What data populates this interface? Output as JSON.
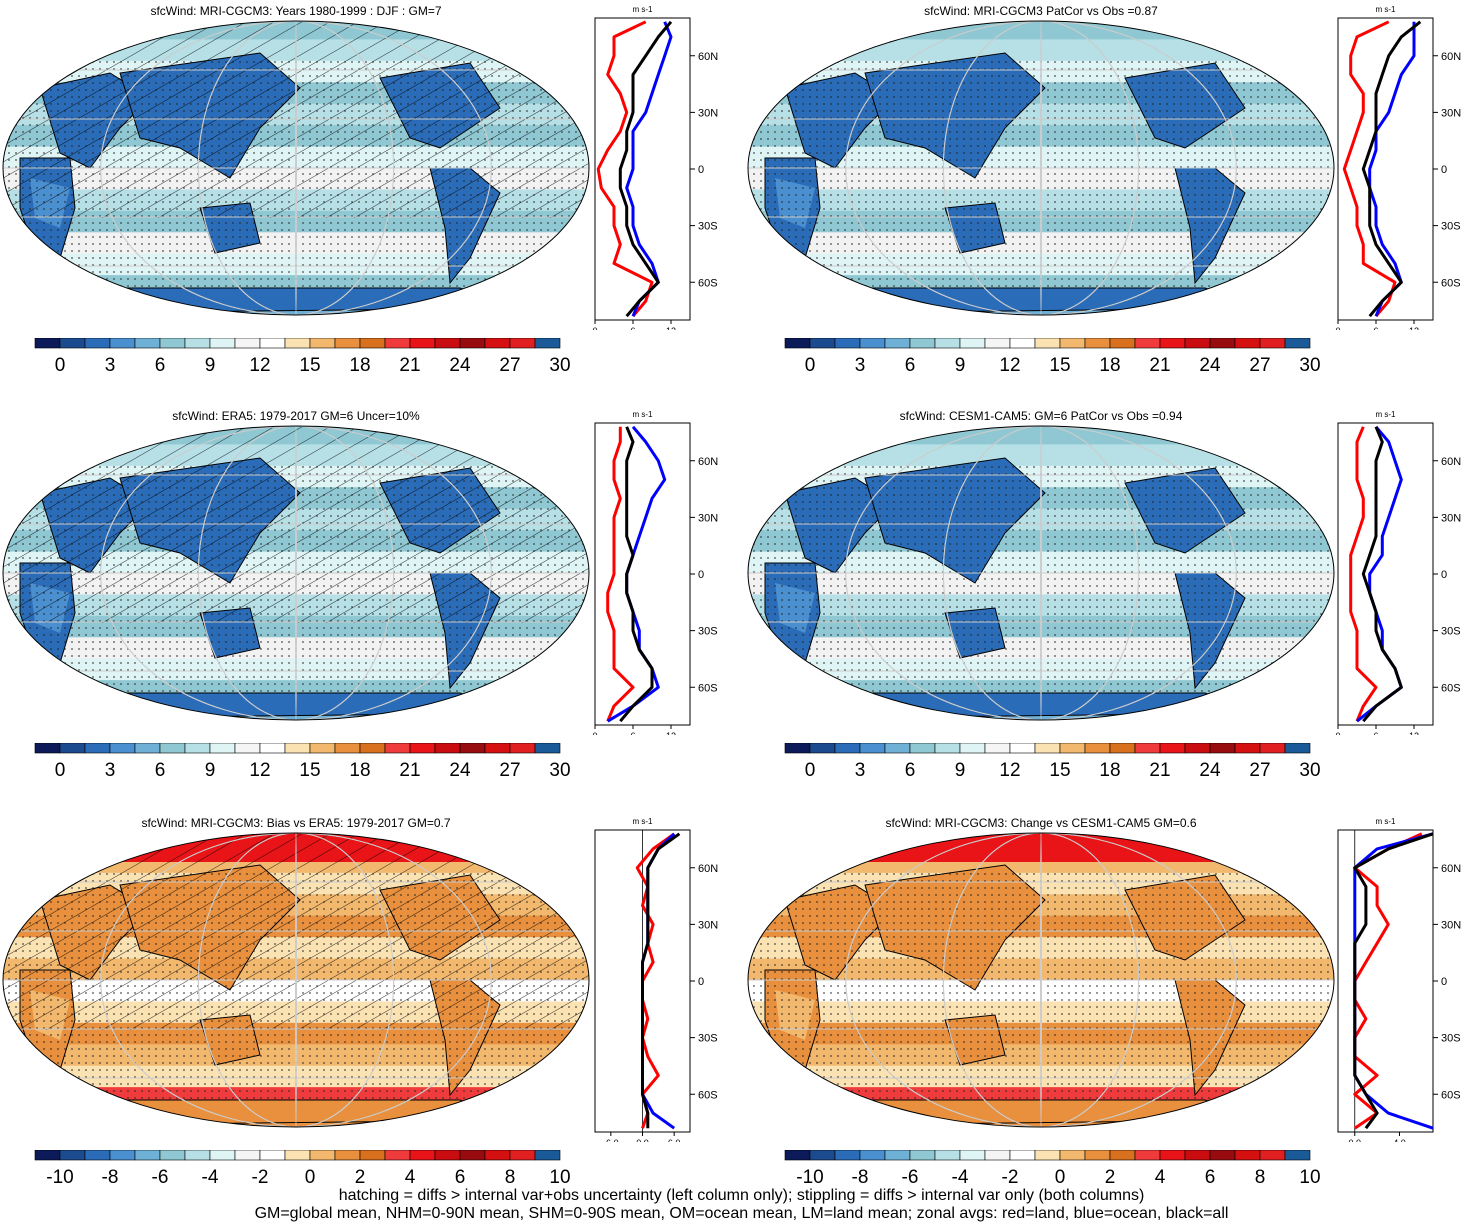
{
  "colors": {
    "blue_scale": [
      "#0c1a5a",
      "#1c4a8e",
      "#2a6cb8",
      "#4a8fd0",
      "#6fb0d6",
      "#8fc8d2",
      "#b6e0e6",
      "#dff5f5",
      "#f5f5f5",
      "#ffffff",
      "#fbe2b2",
      "#f2b86e",
      "#e8903e",
      "#d8701e",
      "#ef3b3b",
      "#e81418",
      "#c80c10",
      "#980c10",
      "#d41010",
      "#e02020",
      "#1a5a98"
    ],
    "diff_scale": [
      "#0c1a5a",
      "#1c4a8e",
      "#2a6cb8",
      "#4a8fd0",
      "#6fb0d6",
      "#8fc8d2",
      "#b6e0e6",
      "#dff5f5",
      "#f5f5f5",
      "#ffffff",
      "#fbe2b2",
      "#f2b86e",
      "#e8903e",
      "#d8701e",
      "#ef3b3b",
      "#e81418",
      "#c80c10",
      "#980c10",
      "#d41010",
      "#e02020",
      "#1a5a98"
    ],
    "land": "#ff0000",
    "ocean": "#0000ff",
    "all": "#000000"
  },
  "colorbar_abs": {
    "labels": [
      "0",
      "3",
      "6",
      "9",
      "12",
      "15",
      "18",
      "21",
      "24",
      "27",
      "30"
    ]
  },
  "colorbar_diff": {
    "labels": [
      "-10",
      "-8",
      "-6",
      "-4",
      "-2",
      "0",
      "2",
      "4",
      "6",
      "8",
      "10"
    ]
  },
  "zonal_common": {
    "unit": "m s-1",
    "lat_ticks": [
      "60N",
      "30N",
      "0",
      "30S",
      "60S"
    ]
  },
  "panels": [
    {
      "title": "sfcWind: MRI-CGCM3: Years 1980-1999 : DJF : GM=7",
      "map_style": "abs",
      "hatched": true,
      "x_ticks": [
        "0",
        "6",
        "12"
      ]
    },
    {
      "title": "sfcWind: MRI-CGCM3 PatCor vs Obs =0.87",
      "map_style": "abs",
      "hatched": false,
      "x_ticks": [
        "0",
        "6",
        "12"
      ]
    },
    {
      "title": "sfcWind: ERA5: 1979-2017 GM=6 Uncer=10%",
      "map_style": "abs",
      "hatched": true,
      "x_ticks": [
        "0",
        "6",
        "12"
      ]
    },
    {
      "title": "sfcWind: CESM1-CAM5: GM=6 PatCor vs Obs =0.94",
      "map_style": "abs",
      "hatched": false,
      "x_ticks": [
        "0",
        "6",
        "12"
      ]
    },
    {
      "title": "sfcWind: MRI-CGCM3: Bias vs ERA5: 1979-2017 GM=0.7",
      "map_style": "diff",
      "hatched": true,
      "x_ticks": [
        "-6.0",
        "0.0",
        "6.0"
      ]
    },
    {
      "title": "sfcWind: MRI-CGCM3: Change vs CESM1-CAM5 GM=0.6",
      "map_style": "diff",
      "hatched": false,
      "x_ticks": [
        "0.0",
        "4.0"
      ]
    }
  ],
  "footer": {
    "line1": "hatching = diffs > internal var+obs uncertainty (left column only); stippling = diffs > internal var only (both columns)",
    "line2": "GM=global mean, NHM=0-90N mean, SHM=0-90S mean, OM=ocean mean, LM=land mean; zonal avgs: red=land, blue=ocean, black=all"
  },
  "chart_data": [
    {
      "type": "line",
      "title": "sfcWind: MRI-CGCM3: Years 1980-1999 : DJF : GM=7",
      "xlabel": "m s-1",
      "xlim": [
        0,
        15
      ],
      "ylim": [
        -80,
        80
      ],
      "x_ticks": [
        0,
        6,
        12
      ],
      "y_ticks": [
        60,
        30,
        0,
        -30,
        -60
      ],
      "lat": [
        78,
        70,
        60,
        50,
        40,
        30,
        20,
        10,
        0,
        -10,
        -20,
        -30,
        -40,
        -50,
        -60,
        -70,
        -78
      ],
      "series": [
        {
          "name": "red=land",
          "values": [
            8,
            3,
            3,
            2,
            4,
            5,
            4,
            2,
            0.5,
            1,
            3,
            3,
            4,
            3,
            9,
            8,
            6
          ]
        },
        {
          "name": "blue=ocean",
          "values": [
            11,
            12,
            11,
            10,
            9,
            8,
            6,
            6,
            6,
            5,
            6,
            6,
            7,
            9,
            10,
            7,
            6
          ]
        },
        {
          "name": "black=all",
          "values": [
            12,
            10,
            8,
            6,
            6,
            6,
            5,
            5,
            4,
            4,
            5,
            5,
            6,
            8,
            10,
            7,
            5
          ]
        }
      ]
    },
    {
      "type": "line",
      "title": "sfcWind: MRI-CGCM3 PatCor vs Obs =0.87",
      "xlabel": "m s-1",
      "xlim": [
        0,
        15
      ],
      "ylim": [
        -80,
        80
      ],
      "x_ticks": [
        0,
        6,
        12
      ],
      "y_ticks": [
        60,
        30,
        0,
        -30,
        -60
      ],
      "lat": [
        78,
        70,
        60,
        50,
        40,
        30,
        20,
        10,
        0,
        -10,
        -20,
        -30,
        -40,
        -50,
        -60,
        -70,
        -78
      ],
      "series": [
        {
          "name": "red=land",
          "values": [
            8,
            3,
            2,
            2,
            4,
            4,
            3,
            2,
            1,
            2,
            3,
            3,
            4,
            4,
            9,
            8,
            6
          ]
        },
        {
          "name": "blue=ocean",
          "values": [
            12,
            12,
            12,
            10,
            9,
            8,
            6,
            6,
            5,
            5,
            6,
            6,
            7,
            9,
            10,
            7,
            6
          ]
        },
        {
          "name": "black=all",
          "values": [
            13,
            10,
            8,
            7,
            6,
            6,
            6,
            5,
            4,
            5,
            5,
            5,
            6,
            8,
            10,
            7,
            5
          ]
        }
      ]
    },
    {
      "type": "line",
      "title": "sfcWind: ERA5: 1979-2017 GM=6 Uncer=10%",
      "xlabel": "m s-1",
      "xlim": [
        0,
        15
      ],
      "ylim": [
        -80,
        80
      ],
      "x_ticks": [
        0,
        6,
        12
      ],
      "y_ticks": [
        60,
        30,
        0,
        -30,
        -60
      ],
      "lat": [
        78,
        70,
        60,
        50,
        40,
        30,
        20,
        10,
        0,
        -10,
        -20,
        -30,
        -40,
        -50,
        -60,
        -70,
        -78
      ],
      "series": [
        {
          "name": "red=land",
          "values": [
            4,
            4,
            3,
            3,
            4,
            3,
            3,
            3,
            3,
            2,
            2,
            3,
            3,
            3,
            6,
            3,
            2
          ]
        },
        {
          "name": "blue=ocean",
          "values": [
            6,
            8,
            10,
            11,
            9,
            8,
            7,
            6,
            5,
            5,
            6,
            7,
            7,
            9,
            10,
            6,
            2
          ]
        },
        {
          "name": "black=all",
          "values": [
            5,
            6,
            5,
            5,
            5,
            5,
            5,
            6,
            5,
            5,
            6,
            6,
            7,
            9,
            9,
            6,
            4
          ]
        }
      ]
    },
    {
      "type": "line",
      "title": "sfcWind: CESM1-CAM5: GM=6 PatCor vs Obs =0.94",
      "xlabel": "m s-1",
      "xlim": [
        0,
        15
      ],
      "ylim": [
        -80,
        80
      ],
      "x_ticks": [
        0,
        6,
        12
      ],
      "y_ticks": [
        60,
        30,
        0,
        -30,
        -60
      ],
      "lat": [
        78,
        70,
        60,
        50,
        40,
        30,
        20,
        10,
        0,
        -10,
        -20,
        -30,
        -40,
        -50,
        -60,
        -70,
        -78
      ],
      "series": [
        {
          "name": "red=land",
          "values": [
            4,
            3,
            3,
            3,
            4,
            4,
            3,
            2,
            2,
            2,
            2,
            3,
            3,
            3,
            6,
            4,
            3
          ]
        },
        {
          "name": "blue=ocean",
          "values": [
            6,
            8,
            9,
            10,
            9,
            8,
            7,
            7,
            5,
            5,
            6,
            7,
            7,
            9,
            10,
            6,
            3
          ]
        },
        {
          "name": "black=all",
          "values": [
            6,
            7,
            6,
            6,
            6,
            6,
            6,
            5,
            4,
            5,
            6,
            6,
            7,
            9,
            10,
            6,
            4
          ]
        }
      ]
    },
    {
      "type": "line",
      "title": "sfcWind: MRI-CGCM3: Bias vs ERA5: 1979-2017 GM=0.7",
      "xlabel": "m s-1",
      "xlim": [
        -9,
        9
      ],
      "ylim": [
        -80,
        80
      ],
      "x_ticks": [
        -6.0,
        0.0,
        6.0
      ],
      "y_ticks": [
        60,
        30,
        0,
        -30,
        -60
      ],
      "lat": [
        78,
        70,
        60,
        50,
        40,
        30,
        20,
        10,
        0,
        -10,
        -20,
        -30,
        -40,
        -50,
        -60,
        -70,
        -78
      ],
      "series": [
        {
          "name": "red=land",
          "values": [
            6,
            2,
            -1,
            1,
            0,
            2,
            1,
            2,
            0,
            0,
            1,
            0,
            1,
            3,
            0,
            1,
            0
          ]
        },
        {
          "name": "blue=ocean",
          "values": [
            6,
            3,
            1,
            1,
            1,
            1,
            1,
            0,
            0,
            0,
            0,
            0,
            0,
            0,
            0,
            2,
            6
          ]
        },
        {
          "name": "black=all",
          "values": [
            7,
            3,
            1,
            1,
            1,
            1,
            1,
            0,
            0,
            0,
            0,
            0,
            0,
            0,
            0,
            1,
            1
          ]
        }
      ]
    },
    {
      "type": "line",
      "title": "sfcWind: MRI-CGCM3: Change vs CESM1-CAM5 GM=0.6",
      "xlabel": "m s-1",
      "xlim": [
        -1.5,
        7
      ],
      "ylim": [
        -80,
        80
      ],
      "x_ticks": [
        0.0,
        4.0
      ],
      "y_ticks": [
        60,
        30,
        0,
        -30,
        -60
      ],
      "lat": [
        78,
        70,
        60,
        50,
        40,
        30,
        20,
        10,
        0,
        -10,
        -20,
        -30,
        -40,
        -50,
        -60,
        -70,
        -78
      ],
      "series": [
        {
          "name": "red=land",
          "values": [
            6,
            3,
            0,
            2,
            2,
            3,
            2,
            1,
            0,
            0,
            1,
            0,
            0,
            2,
            0,
            2,
            0
          ]
        },
        {
          "name": "blue=ocean",
          "values": [
            7,
            2,
            0,
            0,
            0,
            0,
            0,
            0,
            0,
            0,
            0,
            0,
            0,
            0,
            1,
            3,
            7
          ]
        },
        {
          "name": "black=all",
          "values": [
            7,
            3,
            0,
            1,
            1,
            1,
            0,
            0,
            0,
            0,
            0,
            0,
            0,
            0,
            1,
            2,
            1
          ]
        }
      ]
    }
  ]
}
